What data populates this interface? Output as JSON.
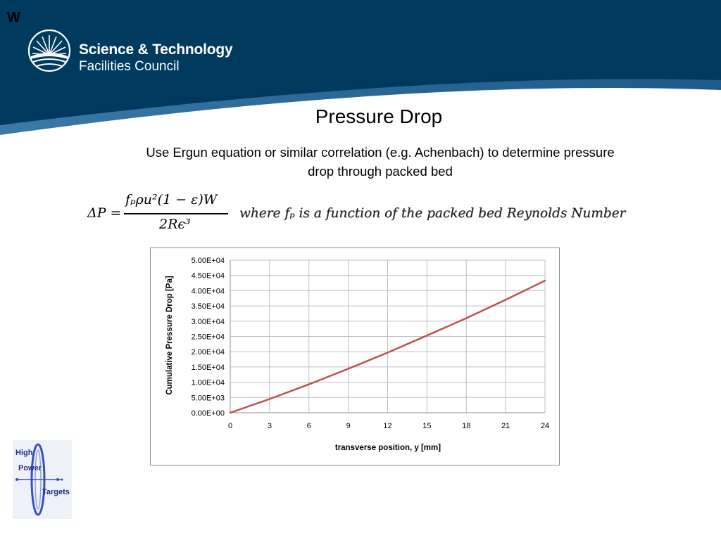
{
  "corner_mark": "W",
  "logo": {
    "line1": "Science & Technology",
    "line2": "Facilities Council"
  },
  "slide": {
    "title": "Pressure Drop",
    "subtitle": "Use Ergun equation or similar correlation (e.g. Achenbach) to determine pressure drop through packed bed"
  },
  "formula": {
    "lhs": "ΔP =",
    "numerator": "fₚρu²(1 − ε)W",
    "denominator": "2Rϵ³",
    "where_text": "where fₚ is a function of the packed bed Reynolds Number"
  },
  "chart_data": {
    "type": "line",
    "title": "",
    "xlabel": "transverse position, y [mm]",
    "ylabel": "Cumulative Pressure Drop [Pa]",
    "xlim": [
      0,
      24
    ],
    "ylim": [
      0,
      50000
    ],
    "x_ticks": [
      0,
      3,
      6,
      9,
      12,
      15,
      18,
      21,
      24
    ],
    "y_tick_values": [
      0,
      5000,
      10000,
      15000,
      20000,
      25000,
      30000,
      35000,
      40000,
      45000,
      50000
    ],
    "y_tick_labels": [
      "0.00E+00",
      "5.00E+03",
      "1.00E+04",
      "1.50E+04",
      "2.00E+04",
      "2.50E+04",
      "3.00E+04",
      "3.50E+04",
      "4.00E+04",
      "4.50E+04",
      "5.00E+04"
    ],
    "grid": true,
    "legend": "none",
    "series": [
      {
        "color": "#c0504d",
        "x": [
          0,
          3,
          6,
          9,
          12,
          15,
          18,
          21,
          24
        ],
        "y": [
          0,
          4500,
          9300,
          14400,
          19700,
          25300,
          31000,
          37000,
          43300
        ]
      }
    ]
  },
  "hpt_logo": {
    "word1": "High",
    "word2": "Power",
    "word3": "Targets"
  },
  "colors": {
    "header_navy": "#00395d",
    "header_blue": "#1c5d8c",
    "series_red": "#c0504d",
    "grid": "#bfbfbf"
  }
}
